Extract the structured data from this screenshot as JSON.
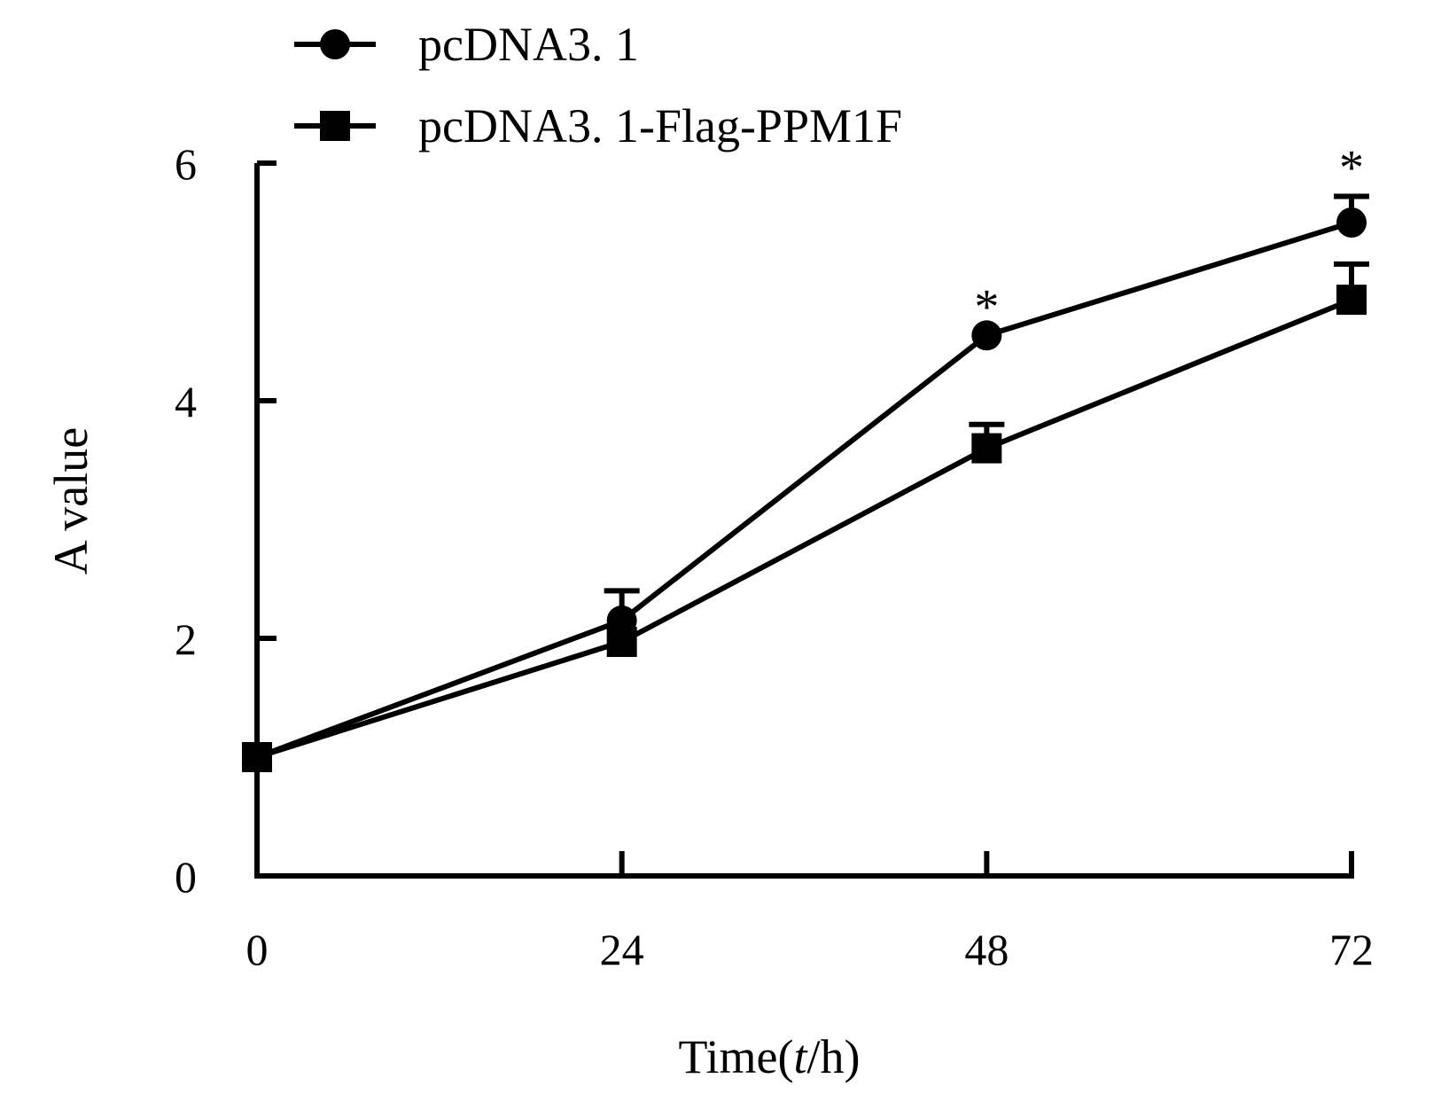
{
  "chart_data": {
    "type": "line",
    "x": [
      0,
      24,
      48,
      72
    ],
    "series": [
      {
        "name": "pcDNA3. 1",
        "marker": "circle",
        "values": [
          1.0,
          2.15,
          4.55,
          5.5
        ],
        "error": [
          0,
          0.25,
          0,
          0.22
        ]
      },
      {
        "name": "pcDNA3. 1-Flag-PPM1F",
        "marker": "square",
        "values": [
          1.0,
          1.97,
          3.6,
          4.85
        ],
        "error": [
          0,
          0,
          0.2,
          0.3
        ]
      }
    ],
    "annotations": [
      {
        "x": 48,
        "text": "*"
      },
      {
        "x": 72,
        "text": "*"
      }
    ],
    "xlabel_prefix": "Time(",
    "xlabel_var": "t",
    "xlabel_suffix": "/h)",
    "ylabel": "A value",
    "xticks": [
      0,
      24,
      48,
      72
    ],
    "xtick_labels": [
      "0",
      "24",
      "48",
      "72"
    ],
    "yticks": [
      0,
      2,
      4,
      6
    ],
    "ytick_labels": [
      "0",
      "2",
      "4",
      "6"
    ],
    "xlim": [
      0,
      72
    ],
    "ylim": [
      0,
      6
    ],
    "grid": false,
    "legend_position": "top-left",
    "color": "#000000"
  }
}
